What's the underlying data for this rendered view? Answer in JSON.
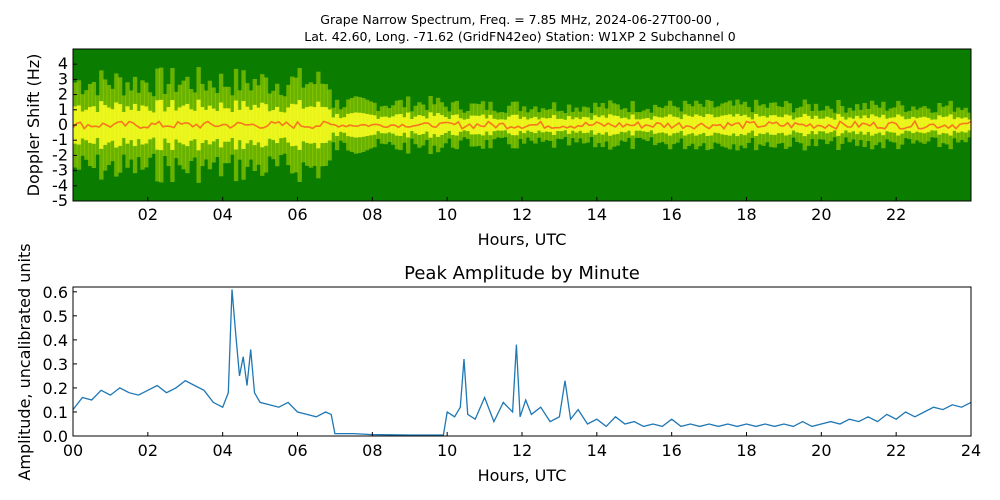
{
  "figure": {
    "title_line1": "Grape Narrow Spectrum, Freq. = 7.85 MHz, 2024-06-27T00-00 ,",
    "title_line2": "Lat.  42.60, Long. -71.62 (GridFN42eo) Station: W1XP 2 Subchannel 0"
  },
  "chart_data": [
    {
      "type": "heatmap",
      "title": "Grape Narrow Spectrum, Freq. = 7.85 MHz, 2024-06-27T00-00 , Lat.  42.60, Long. -71.62 (GridFN42eo) Station: W1XP 2 Subchannel 0",
      "xlabel": "Hours, UTC",
      "ylabel": "Doppler Shift (Hz)",
      "xlim": [
        0,
        24
      ],
      "ylim": [
        -5,
        5
      ],
      "xticks": [
        "02",
        "04",
        "06",
        "08",
        "10",
        "12",
        "14",
        "16",
        "18",
        "20",
        "22"
      ],
      "yticks": [
        "4",
        "3",
        "2",
        "1",
        "0",
        "-1",
        "-2",
        "-3",
        "-4",
        "-5"
      ],
      "colors": {
        "background": "#0a7d00",
        "mid": "#b8e000",
        "high": "#ffff20",
        "peak": "#ff4020"
      },
      "description_values": {
        "signal_center_hz": 0,
        "segments": [
          {
            "start_hr": 0,
            "end_hr": 6.9,
            "spread_hz": 1.6,
            "intensity": "high"
          },
          {
            "start_hr": 6.9,
            "end_hr": 9.9,
            "spread_hz": 0.8,
            "intensity": "low"
          },
          {
            "start_hr": 9.9,
            "end_hr": 24,
            "spread_hz": 0.7,
            "intensity": "medium"
          }
        ]
      }
    },
    {
      "type": "line",
      "title": "Peak Amplitude by Minute",
      "xlabel": "Hours, UTC",
      "ylabel": "Amplitude, uncalibrated units",
      "xlim": [
        0,
        24
      ],
      "ylim": [
        0,
        0.62
      ],
      "xticks": [
        "00",
        "02",
        "04",
        "06",
        "08",
        "10",
        "12",
        "14",
        "16",
        "18",
        "20",
        "22",
        "24"
      ],
      "yticks": [
        "0.0",
        "0.1",
        "0.2",
        "0.3",
        "0.4",
        "0.5",
        "0.6"
      ],
      "color": "#1f77b4",
      "x": [
        0,
        0.25,
        0.5,
        0.75,
        1,
        1.25,
        1.5,
        1.75,
        2,
        2.25,
        2.5,
        2.75,
        3,
        3.25,
        3.5,
        3.75,
        4,
        4.15,
        4.25,
        4.35,
        4.45,
        4.55,
        4.65,
        4.75,
        4.85,
        5,
        5.25,
        5.5,
        5.75,
        6,
        6.25,
        6.5,
        6.75,
        6.9,
        7,
        7.5,
        8,
        8.5,
        9,
        9.5,
        9.9,
        10,
        10.2,
        10.35,
        10.45,
        10.55,
        10.75,
        11,
        11.25,
        11.5,
        11.75,
        11.85,
        11.95,
        12.1,
        12.25,
        12.5,
        12.75,
        13,
        13.15,
        13.3,
        13.5,
        13.75,
        14,
        14.25,
        14.5,
        14.75,
        15,
        15.25,
        15.5,
        15.75,
        16,
        16.25,
        16.5,
        16.75,
        17,
        17.25,
        17.5,
        17.75,
        18,
        18.25,
        18.5,
        18.75,
        19,
        19.25,
        19.5,
        19.75,
        20,
        20.25,
        20.5,
        20.75,
        21,
        21.25,
        21.5,
        21.75,
        22,
        22.25,
        22.5,
        22.75,
        23,
        23.25,
        23.5,
        23.75,
        24
      ],
      "y": [
        0.11,
        0.16,
        0.15,
        0.19,
        0.17,
        0.2,
        0.18,
        0.17,
        0.19,
        0.21,
        0.18,
        0.2,
        0.23,
        0.21,
        0.19,
        0.14,
        0.12,
        0.18,
        0.61,
        0.42,
        0.25,
        0.33,
        0.21,
        0.36,
        0.18,
        0.14,
        0.13,
        0.12,
        0.14,
        0.1,
        0.09,
        0.08,
        0.1,
        0.09,
        0.01,
        0.01,
        0.006,
        0.005,
        0.004,
        0.004,
        0.004,
        0.1,
        0.08,
        0.12,
        0.32,
        0.09,
        0.07,
        0.16,
        0.06,
        0.14,
        0.1,
        0.38,
        0.08,
        0.15,
        0.09,
        0.12,
        0.06,
        0.08,
        0.23,
        0.07,
        0.11,
        0.05,
        0.07,
        0.04,
        0.08,
        0.05,
        0.06,
        0.04,
        0.05,
        0.04,
        0.07,
        0.04,
        0.05,
        0.04,
        0.05,
        0.04,
        0.05,
        0.04,
        0.05,
        0.04,
        0.05,
        0.04,
        0.05,
        0.04,
        0.06,
        0.04,
        0.05,
        0.06,
        0.05,
        0.07,
        0.06,
        0.08,
        0.06,
        0.09,
        0.07,
        0.1,
        0.08,
        0.1,
        0.12,
        0.11,
        0.13,
        0.12,
        0.14
      ]
    }
  ]
}
